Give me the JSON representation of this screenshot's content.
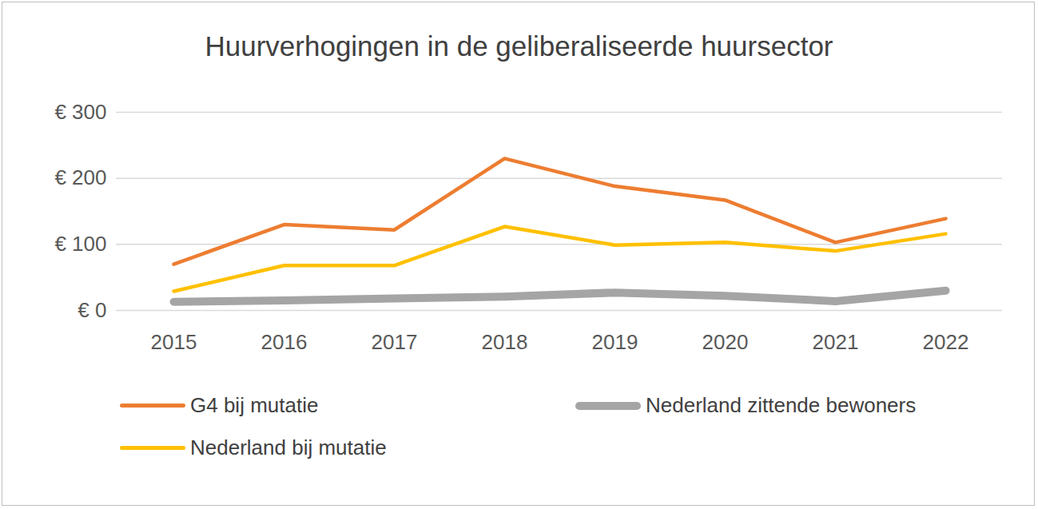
{
  "chart_data": {
    "type": "line",
    "title": "Huurverhogingen in de geliberaliseerde huursector",
    "categories": [
      "2015",
      "2016",
      "2017",
      "2018",
      "2019",
      "2020",
      "2021",
      "2022"
    ],
    "series": [
      {
        "name": "G4 bij mutatie",
        "color": "#ed7d31",
        "line_style": "solid",
        "values": [
          70,
          130,
          122,
          230,
          188,
          167,
          103,
          139
        ]
      },
      {
        "name": "Nederland zittende bewoners",
        "color": "#a5a5a5",
        "line_style": "thick",
        "values": [
          13,
          15,
          18,
          21,
          27,
          22,
          14,
          30
        ]
      },
      {
        "name": "Nederland bij mutatie",
        "color": "#ffc000",
        "line_style": "solid",
        "values": [
          29,
          68,
          68,
          127,
          99,
          103,
          90,
          116
        ]
      }
    ],
    "ylim": [
      0,
      300
    ],
    "yticks": [
      {
        "value": 0,
        "label": "€ 0"
      },
      {
        "value": 100,
        "label": "€ 100"
      },
      {
        "value": 200,
        "label": "€ 200"
      },
      {
        "value": 300,
        "label": "€ 300"
      }
    ],
    "grid": true,
    "legend": "bottom"
  }
}
